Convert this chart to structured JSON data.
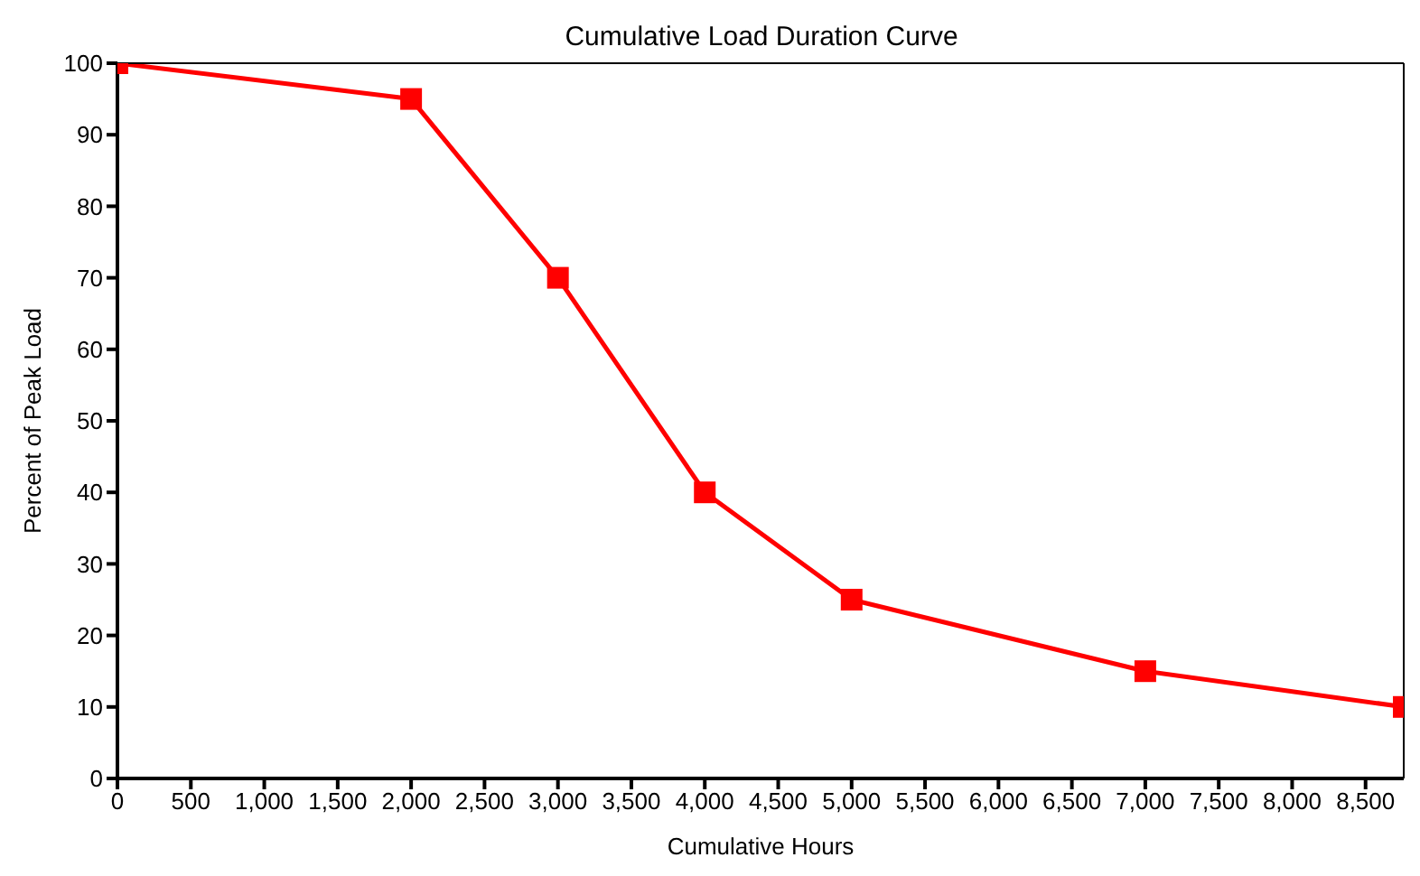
{
  "chart_data": {
    "type": "line",
    "title": "Cumulative Load Duration Curve",
    "xlabel": "Cumulative Hours",
    "ylabel": "Percent of Peak Load",
    "x": [
      0,
      2000,
      3000,
      4000,
      5000,
      7000,
      8760
    ],
    "series": [
      {
        "color": "#ff0000",
        "values": [
          100,
          95,
          70,
          40,
          25,
          15,
          10
        ]
      }
    ],
    "xlim": [
      0,
      8760
    ],
    "xticks": [
      {
        "value": 0,
        "label": "0"
      },
      {
        "value": 500,
        "label": "500"
      },
      {
        "value": 1000,
        "label": "1,000"
      },
      {
        "value": 1500,
        "label": "1,500"
      },
      {
        "value": 2000,
        "label": "2,000"
      },
      {
        "value": 2500,
        "label": "2,500"
      },
      {
        "value": 3000,
        "label": "3,000"
      },
      {
        "value": 3500,
        "label": "3,500"
      },
      {
        "value": 4000,
        "label": "4,000"
      },
      {
        "value": 4500,
        "label": "4,500"
      },
      {
        "value": 5000,
        "label": "5,000"
      },
      {
        "value": 5500,
        "label": "5,500"
      },
      {
        "value": 6000,
        "label": "6,000"
      },
      {
        "value": 6500,
        "label": "6,500"
      },
      {
        "value": 7000,
        "label": "7,000"
      },
      {
        "value": 7500,
        "label": "7,500"
      },
      {
        "value": 8000,
        "label": "8,000"
      },
      {
        "value": 8500,
        "label": "8,500"
      }
    ],
    "ylim": [
      0,
      100
    ],
    "yticks": [
      0,
      10,
      20,
      30,
      40,
      50,
      60,
      70,
      80,
      90,
      100
    ],
    "grid": false,
    "legend": false,
    "marker": "square",
    "line_style": "solid"
  }
}
